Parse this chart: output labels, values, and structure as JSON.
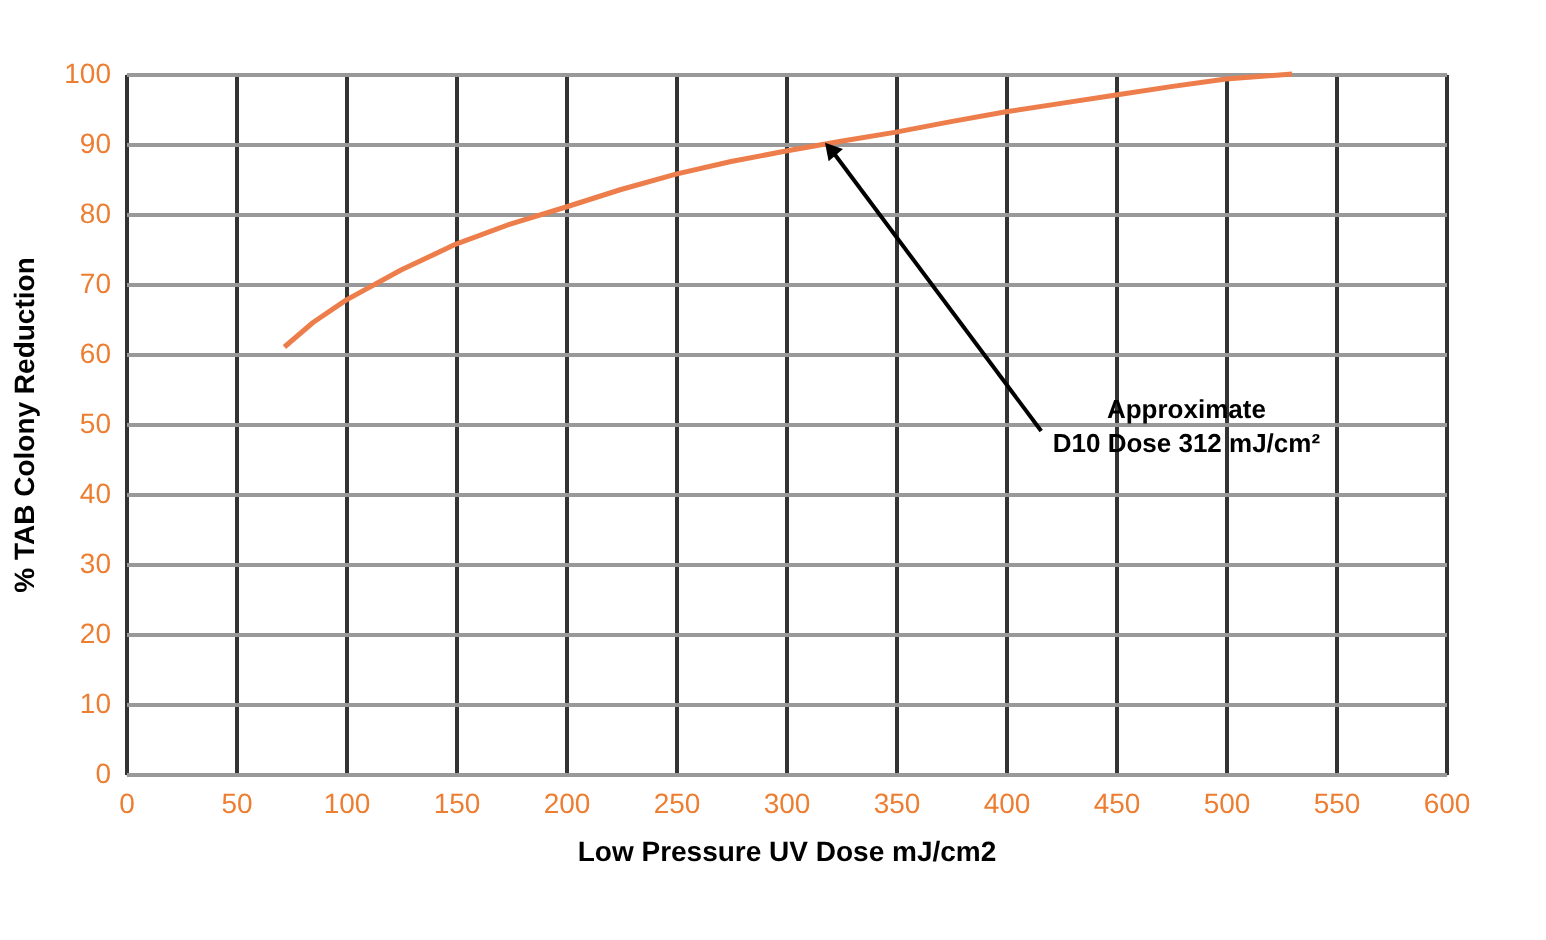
{
  "chart_data": {
    "type": "line",
    "xlabel": "Low Pressure UV Dose mJ/cm2",
    "ylabel": "% TAB Colony Reduction",
    "series": [
      {
        "color": "#ed7d4b",
        "x": [
          72,
          85,
          100,
          125,
          150,
          175,
          200,
          225,
          250,
          275,
          300,
          325,
          350,
          375,
          400,
          425,
          450,
          475,
          500,
          530
        ],
        "values": [
          61,
          64.5,
          67.7,
          72,
          75.7,
          78.6,
          81,
          83.5,
          85.7,
          87.5,
          89,
          90.4,
          91.7,
          93.2,
          94.6,
          95.8,
          97,
          98.2,
          99.3,
          100
        ]
      }
    ],
    "xlim": [
      0,
      600
    ],
    "xticks": [
      0,
      50,
      100,
      150,
      200,
      250,
      300,
      350,
      400,
      450,
      500,
      550,
      600
    ],
    "ylim": [
      0,
      100
    ],
    "yticks": [
      0,
      10,
      20,
      30,
      40,
      50,
      60,
      70,
      80,
      90,
      100
    ],
    "grid": true,
    "marker": "none",
    "line_style": "solid",
    "annotations": [
      {
        "text": "Approximate\nD10 Dose 312 mJ/cm²",
        "x": 321,
        "y": 89
      }
    ]
  }
}
